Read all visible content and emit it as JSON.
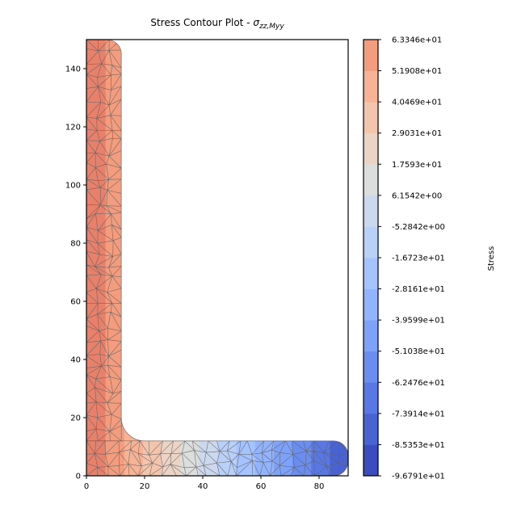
{
  "chart_data": {
    "type": "heatmap",
    "title": "Stress Contour Plot - ",
    "title_math": "σ",
    "title_subscript": "zz,Myy",
    "xlabel": "",
    "ylabel": "",
    "xlim": [
      0,
      90
    ],
    "ylim": [
      0,
      150
    ],
    "x_ticks": [
      {
        "value": 0,
        "label": "0"
      },
      {
        "value": 20,
        "label": "20"
      },
      {
        "value": 40,
        "label": "40"
      },
      {
        "value": 60,
        "label": "60"
      },
      {
        "value": 80,
        "label": "80"
      }
    ],
    "y_ticks": [
      {
        "value": 0,
        "label": "0"
      },
      {
        "value": 20,
        "label": "20"
      },
      {
        "value": 40,
        "label": "40"
      },
      {
        "value": 60,
        "label": "60"
      },
      {
        "value": 80,
        "label": "80"
      },
      {
        "value": 100,
        "label": "100"
      },
      {
        "value": 120,
        "label": "120"
      },
      {
        "value": 140,
        "label": "140"
      }
    ],
    "section": {
      "shape": "angle",
      "depth": 150,
      "width": 90,
      "thickness": 12,
      "root_radius": 8,
      "toe_radius": 5
    },
    "stress_field": {
      "neutral_x": 35.6,
      "value_at_x0": 63.346,
      "gradient_per_mm": -1.7792
    },
    "colorbar": {
      "label": "Stress",
      "min": -96.791,
      "max": 63.346,
      "levels": [
        {
          "value": -96.791,
          "label": "-9.6791e+01",
          "color": "#3b4cc0"
        },
        {
          "value": -85.353,
          "label": "-8.5353e+01",
          "color": "#4a63d3"
        },
        {
          "value": -73.914,
          "label": "-7.3914e+01",
          "color": "#5a78e4"
        },
        {
          "value": -62.476,
          "label": "-6.2476e+01",
          "color": "#6b8df0"
        },
        {
          "value": -51.038,
          "label": "-5.1038e+01",
          "color": "#7ea1f9"
        },
        {
          "value": -39.599,
          "label": "-3.9599e+01",
          "color": "#92b4fe"
        },
        {
          "value": -28.161,
          "label": "-2.8161e+01",
          "color": "#a5c3fe"
        },
        {
          "value": -16.723,
          "label": "-1.6723e+01",
          "color": "#b9d0f9"
        },
        {
          "value": -5.2842,
          "label": "-5.2842e+00",
          "color": "#cbd8ee"
        },
        {
          "value": 6.1542,
          "label": "6.1542e+00",
          "color": "#dcdddd"
        },
        {
          "value": 17.593,
          "label": "1.7593e+01",
          "color": "#ebd3c6"
        },
        {
          "value": 29.031,
          "label": "2.9031e+01",
          "color": "#f4c5ad"
        },
        {
          "value": 40.469,
          "label": "4.0469e+01",
          "color": "#f7b396"
        },
        {
          "value": 51.908,
          "label": "5.1908e+01",
          "color": "#f39c7e"
        },
        {
          "value": 63.346,
          "label": "6.3346e+01",
          "color": "#e8816b"
        }
      ]
    }
  }
}
